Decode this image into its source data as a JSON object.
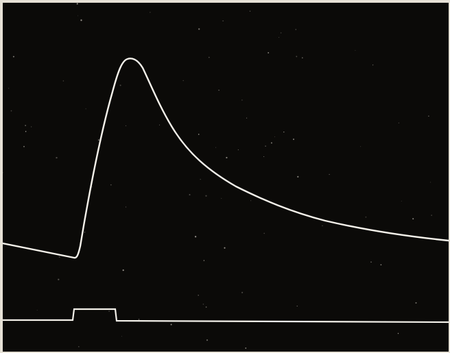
{
  "photo": {
    "subject": "oscilloscope-trace",
    "colors": {
      "screen": "#0b0a08",
      "trace": "#f4f1ea",
      "border": "#e6e1d6",
      "speck": "#cfcac0"
    }
  }
}
